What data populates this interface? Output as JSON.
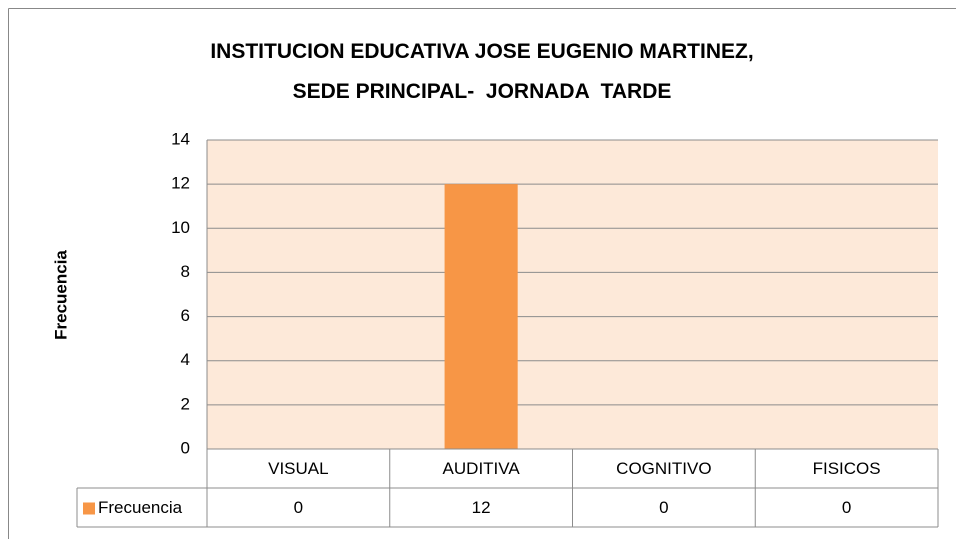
{
  "chart_data": {
    "type": "bar",
    "title": "INSTITUCION EDUCATIVA JOSE EUGENIO MARTINEZ,\nSEDE PRINCIPAL-  JORNADA  TARDE",
    "ylabel": "Frecuencia",
    "categories": [
      "VISUAL",
      "AUDITIVA",
      "COGNITIVO",
      "FISICOS"
    ],
    "series": [
      {
        "name": "Frecuencia",
        "color": "#F79646",
        "values": [
          0,
          12,
          0,
          0
        ]
      }
    ],
    "ylim": [
      0,
      14
    ],
    "yticks": [
      0,
      2,
      4,
      6,
      8,
      10,
      12,
      14
    ],
    "grid": true,
    "plot_background": "#FDE9D9",
    "data_table": true
  }
}
